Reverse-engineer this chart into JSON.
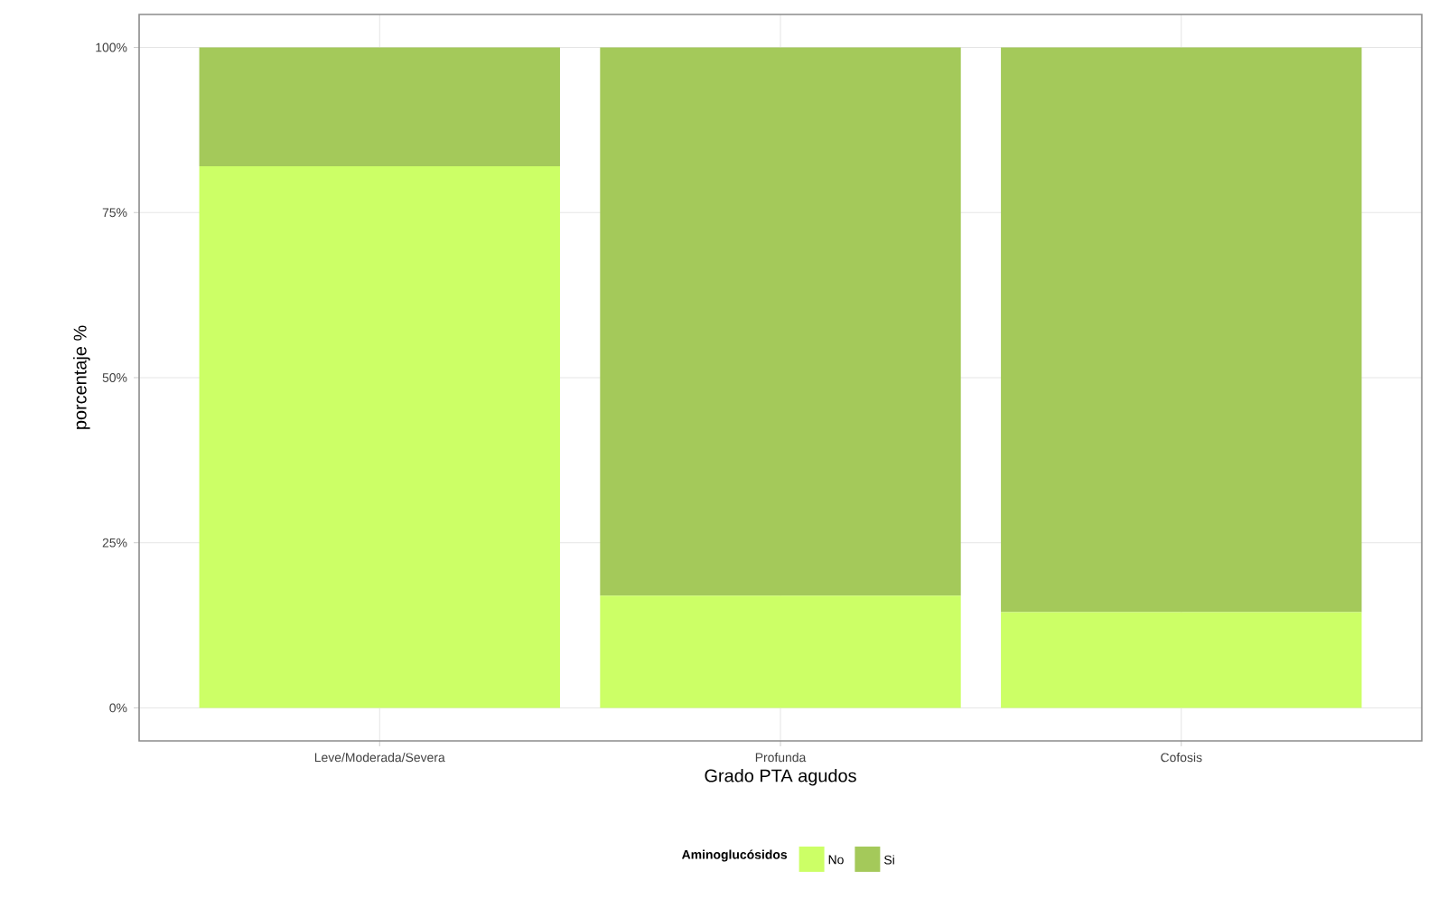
{
  "chart_data": {
    "type": "bar",
    "stacked": true,
    "xlabel": "Grado PTA agudos",
    "ylabel": "porcentaje %",
    "legend_title": "Aminoglucósidos",
    "legend": "bottom",
    "grid": true,
    "categories": [
      "Leve/Moderada/Severa",
      "Profunda",
      "Cofosis"
    ],
    "series": [
      {
        "name": "No",
        "color": "#ccff66",
        "values": [
          82,
          17,
          14.5
        ]
      },
      {
        "name": "Si",
        "color": "#a4c95a",
        "values": [
          18,
          83,
          85.5
        ]
      }
    ],
    "ylim": [
      -5,
      105
    ],
    "yticks": [
      {
        "value": 0,
        "label": "0%"
      },
      {
        "value": 25,
        "label": "25%"
      },
      {
        "value": 50,
        "label": "50%"
      },
      {
        "value": 75,
        "label": "75%"
      },
      {
        "value": 100,
        "label": "100%"
      }
    ]
  }
}
